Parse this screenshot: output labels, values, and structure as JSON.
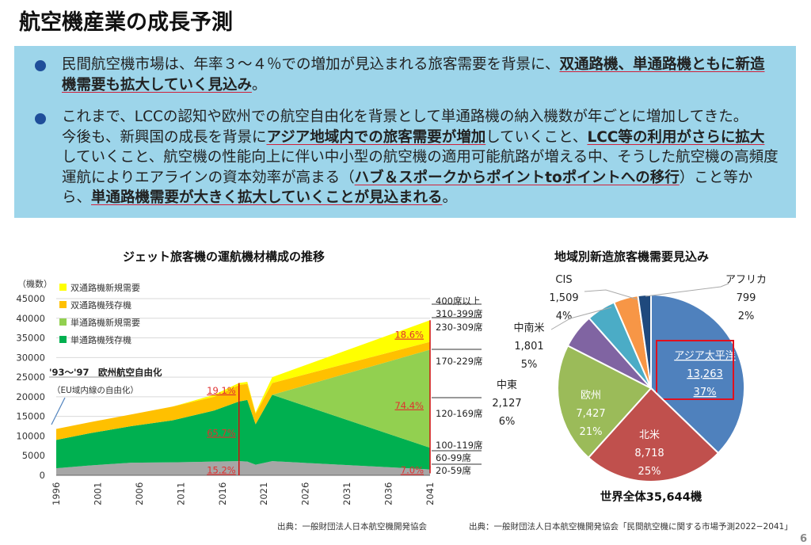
{
  "title": "航空機産業の成長予測",
  "bullets": [
    {
      "segments": [
        {
          "text": "民間航空機市場は、年率３～４％での増加が見込まれる旅客需要を背景に、",
          "bold": false
        },
        {
          "text": "双通路機、単通路機ともに新造機需要も拡大していく見込み",
          "bold": true
        },
        {
          "text": "。",
          "bold": false
        }
      ]
    },
    {
      "segments": [
        {
          "text": "これまで、LCCの認知や欧州での航空自由化を背景として単通路機の納入機数が年ごとに増加してきた。",
          "bold": false
        },
        {
          "text": "今後も、新興国の成長を背景に",
          "bold": false
        },
        {
          "text": "アジア地域内での旅客需要が増加",
          "bold": true
        },
        {
          "text": "していくこと、",
          "bold": false
        },
        {
          "text": "LCC等の利用がさらに拡大",
          "bold": true
        },
        {
          "text": "していくこと、航空機の性能向上に伴い中小型の航空機の適用可能航路が増える中、そうした航空機の高頻度運航によりエアラインの資本効率が高まる（",
          "bold": false
        },
        {
          "text": "ハブ＆スポークからポイントtoポイントへの移行",
          "bold": true
        },
        {
          "text": "）こと等から、",
          "bold": false
        },
        {
          "text": "単通路機需要が大きく拡大していくことが見込まれる",
          "bold": true
        },
        {
          "text": "。",
          "bold": false
        }
      ]
    }
  ],
  "chart_data": [
    {
      "type": "area",
      "title": "ジェット旅客機の運航機材構成の推移",
      "ylabel": "（機数）",
      "ylim": [
        0,
        45000
      ],
      "yticks": [
        0,
        5000,
        10000,
        15000,
        20000,
        25000,
        30000,
        35000,
        40000,
        45000
      ],
      "xticks": [
        1996,
        2001,
        2006,
        2011,
        2016,
        2021,
        2026,
        2031,
        2036,
        2041
      ],
      "x": [
        1996,
        2000,
        2005,
        2010,
        2015,
        2018,
        2019,
        2020,
        2022,
        2041
      ],
      "stacked": true,
      "grid": true,
      "legend": "top-left",
      "series": [
        {
          "name": "",
          "color": "#a6a6a6",
          "values": [
            1800,
            2500,
            3200,
            3300,
            3500,
            3600,
            3500,
            2700,
            3600,
            1500
          ]
        },
        {
          "name": "単通路機残存機",
          "color": "#00b050",
          "values": [
            7200,
            8200,
            9300,
            10700,
            13000,
            15200,
            15700,
            10300,
            16900,
            5500
          ]
        },
        {
          "name": "単通路機新規需要",
          "color": "#92d050",
          "values": [
            0,
            0,
            0,
            0,
            0,
            0,
            0,
            0,
            0,
            25000
          ]
        },
        {
          "name": "双通路機残存機",
          "color": "#ffc000",
          "values": [
            2800,
            2800,
            3000,
            3500,
            3500,
            4200,
            4100,
            2700,
            3000,
            2000
          ]
        },
        {
          "name": "双通路機新規需要",
          "color": "#ffff00",
          "values": [
            0,
            0,
            0,
            0,
            500,
            500,
            500,
            300,
            1500,
            5500
          ]
        }
      ],
      "annotations": {
        "event": "'93～'97　欧州航空自由化",
        "event_sub": "（EU域内線の自由化）",
        "pct_2018": [
          "19.1%",
          "65.7%",
          "15.2%"
        ],
        "pct_2041": [
          "18.6%",
          "74.4%",
          "7.0%"
        ],
        "seat_classes": [
          "400席以上",
          "310-399席",
          "230-309席",
          "170-229席",
          "120-169席",
          "100-119席",
          "60-99席",
          "20-59席"
        ]
      },
      "source": "出典：一般財団法人日本航空機開発協会"
    },
    {
      "type": "pie",
      "title": "地域別新造旅客機需要見込み",
      "total_label": "世界全体35,644機",
      "slices": [
        {
          "label": "アジア太平洋",
          "value": 13263,
          "pct": "37%",
          "value_text": "13,263",
          "color": "#4f81bd",
          "highlight": true
        },
        {
          "label": "北米",
          "value": 8718,
          "pct": "25%",
          "value_text": "8,718",
          "color": "#c0504d"
        },
        {
          "label": "欧州",
          "value": 7427,
          "pct": "21%",
          "value_text": "7,427",
          "color": "#9bbb59"
        },
        {
          "label": "中東",
          "value": 2127,
          "pct": "6%",
          "value_text": "2,127",
          "color": "#8064a2"
        },
        {
          "label": "中南米",
          "value": 1801,
          "pct": "5%",
          "value_text": "1,801",
          "color": "#4bacc6"
        },
        {
          "label": "CIS",
          "value": 1509,
          "pct": "4%",
          "value_text": "1,509",
          "color": "#f79646"
        },
        {
          "label": "アフリカ",
          "value": 799,
          "pct": "2%",
          "value_text": "799",
          "color": "#1f497d"
        }
      ],
      "source": "出典：一般財団法人日本航空機開発協会「民間航空機に関する市場予測2022−2041」"
    }
  ],
  "page_number": "6"
}
